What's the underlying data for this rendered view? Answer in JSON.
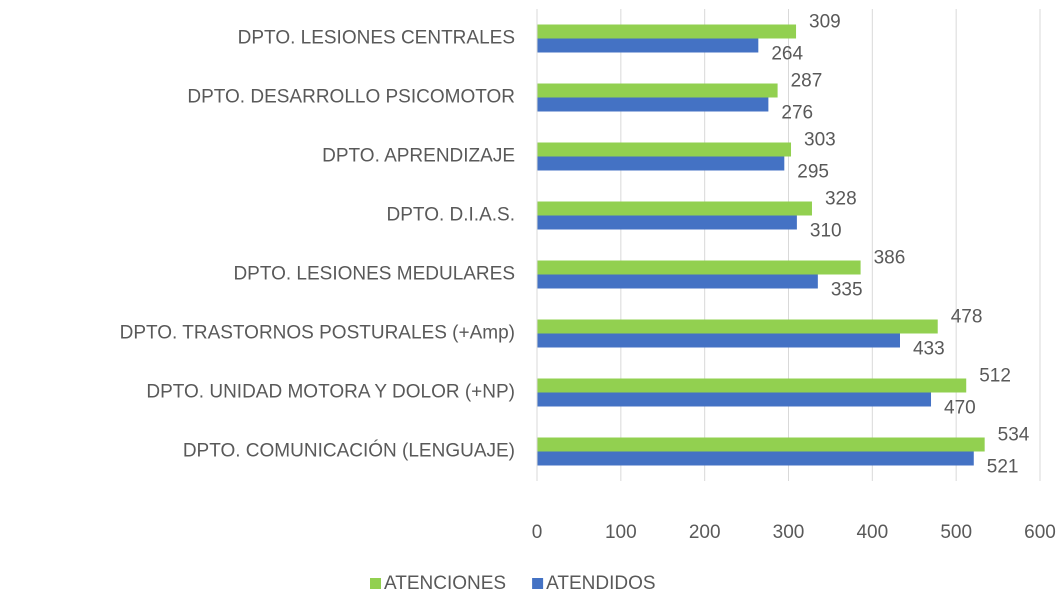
{
  "chart_data": {
    "type": "barh",
    "categories": [
      "DPTO. LESIONES CENTRALES",
      "DPTO. DESARROLLO PSICOMOTOR",
      "DPTO. APRENDIZAJE",
      "DPTO. D.I.A.S.",
      "DPTO. LESIONES MEDULARES",
      "DPTO. TRASTORNOS POSTURALES (+Amp)",
      "DPTO. UNIDAD MOTORA Y DOLOR (+NP)",
      "DPTO. COMUNICACIÓN (LENGUAJE)"
    ],
    "series": [
      {
        "name": "ATENCIONES",
        "color": "#92d050",
        "values": [
          309,
          287,
          303,
          328,
          386,
          478,
          512,
          534
        ]
      },
      {
        "name": "ATENDIDOS",
        "color": "#4472c4",
        "values": [
          264,
          276,
          295,
          310,
          335,
          433,
          470,
          521
        ]
      }
    ],
    "xlim": [
      0,
      600
    ],
    "xticks": [
      0,
      100,
      200,
      300,
      400,
      500,
      600
    ],
    "grid": true,
    "legend": "bottom"
  }
}
